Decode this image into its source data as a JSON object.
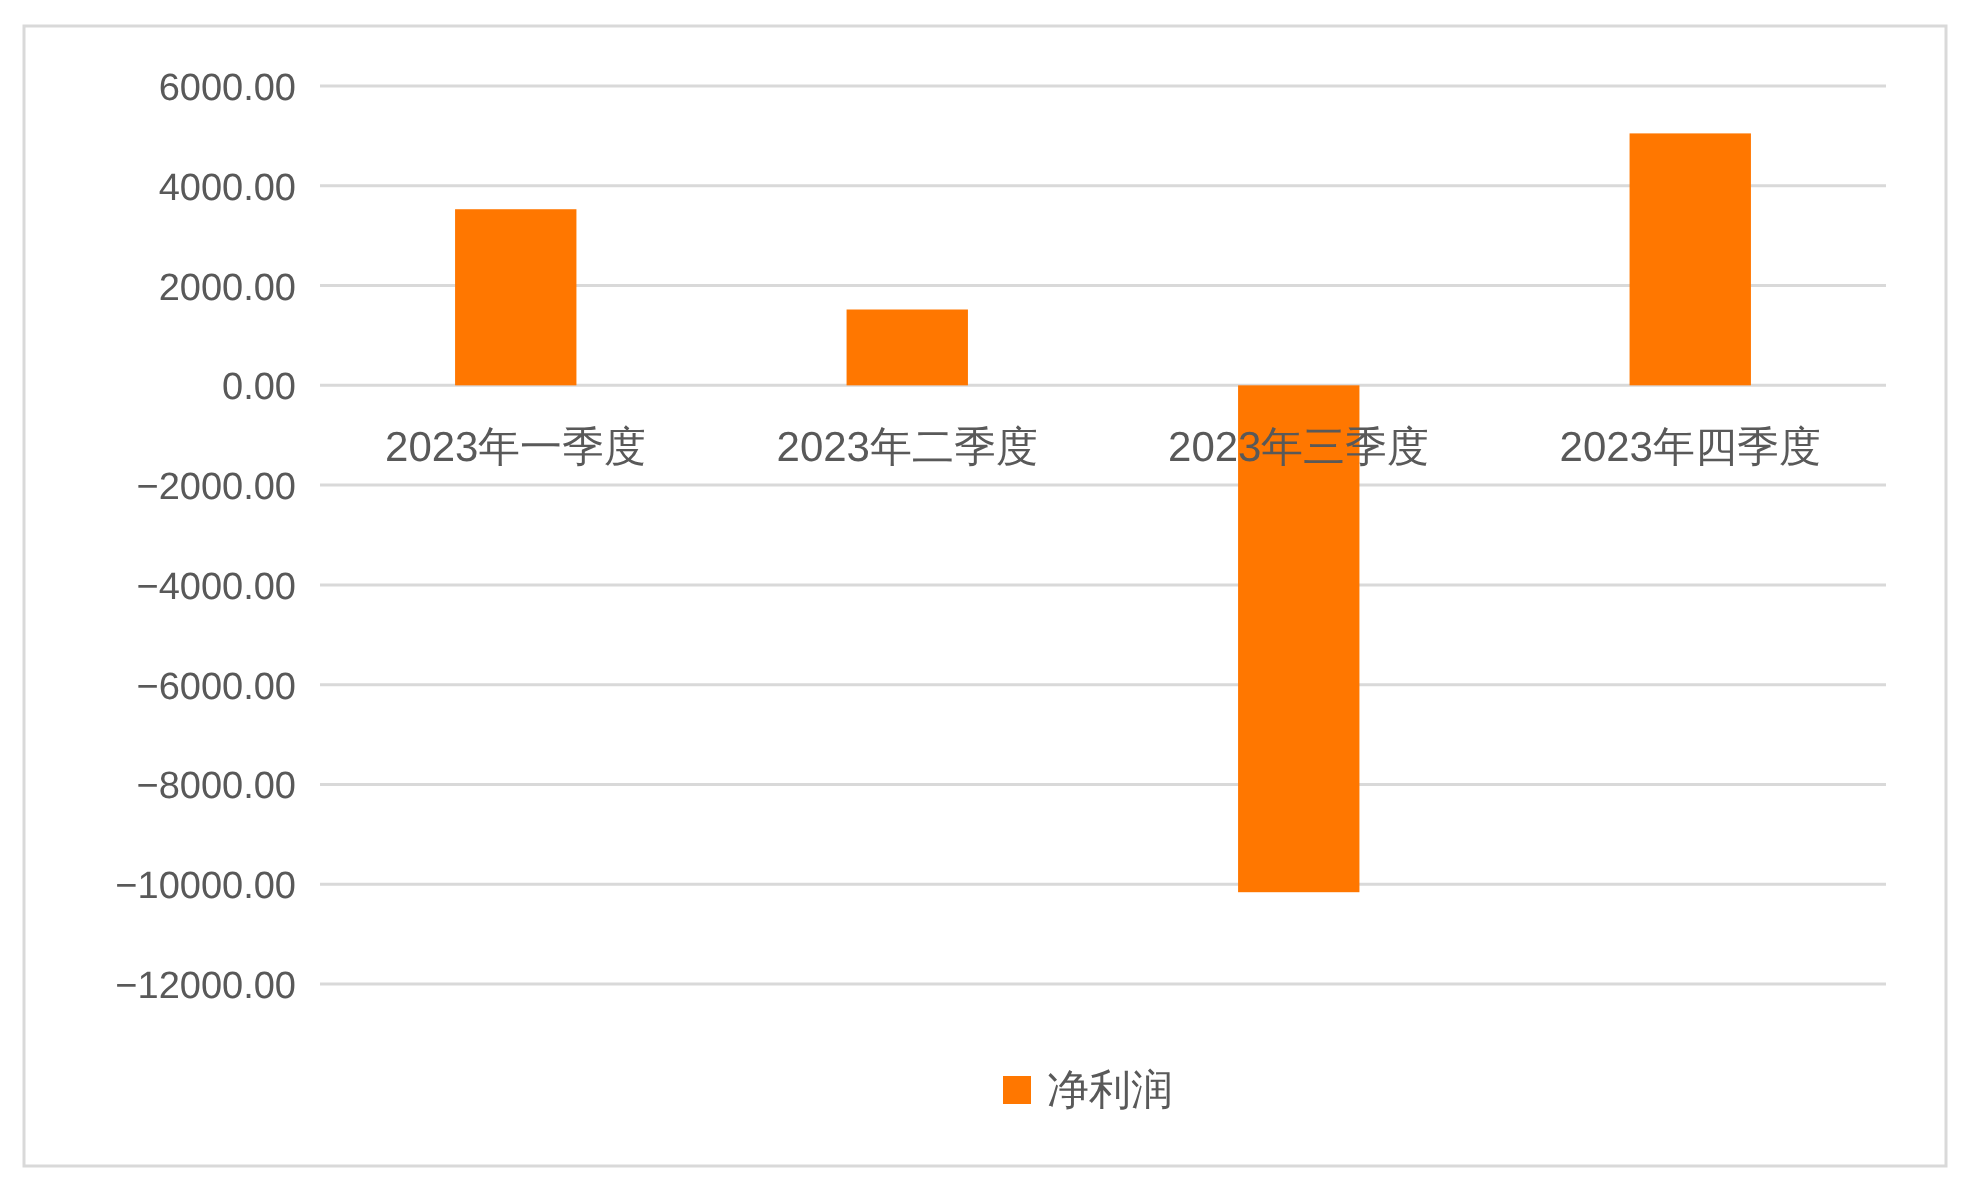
{
  "chart_data": {
    "type": "bar",
    "categories": [
      "2023年一季度",
      "2023年二季度",
      "2023年三季度",
      "2023年四季度"
    ],
    "series": [
      {
        "name": "净利润",
        "color": "#ff7700",
        "values": [
          3530,
          1520,
          -10160,
          5050
        ]
      }
    ],
    "ylim": [
      -12000,
      6000
    ],
    "yticks": [
      {
        "value": 6000,
        "label": "6000.00"
      },
      {
        "value": 4000,
        "label": "4000.00"
      },
      {
        "value": 2000,
        "label": "2000.00"
      },
      {
        "value": 0,
        "label": "0.00"
      },
      {
        "value": -2000,
        "label": "−2000.00"
      },
      {
        "value": -4000,
        "label": "−4000.00"
      },
      {
        "value": -6000,
        "label": "−6000.00"
      },
      {
        "value": -8000,
        "label": "−8000.00"
      },
      {
        "value": -10000,
        "label": "−10000.00"
      },
      {
        "value": -12000,
        "label": "−12000.00"
      }
    ],
    "grid": "y",
    "legend": "bottom"
  }
}
